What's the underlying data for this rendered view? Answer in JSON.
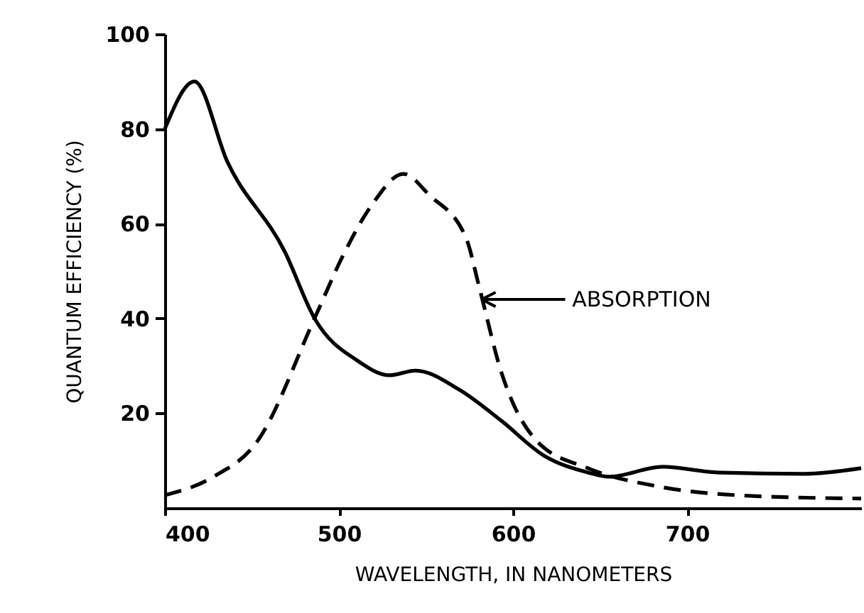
{
  "chart_data": {
    "type": "line",
    "xlabel": "WAVELENGTH, IN NANOMETERS",
    "ylabel": "QUANTUM EFFICIENCY (%)",
    "xlim": [
      400,
      800
    ],
    "xticks": [
      400,
      500,
      600,
      700
    ],
    "ylim": [
      0,
      100
    ],
    "yticks": [
      20,
      40,
      60,
      80,
      100
    ],
    "grid": false,
    "marker": "none",
    "series": [
      {
        "color": "#000000",
        "line_style": "solid",
        "x": [
          400,
          417,
          436,
          469,
          486,
          511,
          529,
          544,
          569,
          593,
          618,
          643,
          655,
          686,
          717,
          767,
          800
        ],
        "values": [
          80,
          90,
          73,
          54,
          40,
          31,
          28,
          29,
          25,
          18.5,
          11,
          7.5,
          6.6,
          8.7,
          7.5,
          7.2,
          8.4
        ]
      },
      {
        "color": "#000000",
        "line_style": "dashed",
        "x": [
          400,
          428,
          453,
          486,
          502,
          519,
          537,
          552,
          573,
          581,
          593,
          614,
          643,
          684,
          740,
          800
        ],
        "values": [
          2.7,
          6.6,
          14,
          40,
          53,
          64,
          70.5,
          66,
          57,
          46,
          29,
          14,
          8.4,
          4.5,
          2.5,
          2
        ]
      }
    ],
    "annotations": [
      "ABSORPTION"
    ]
  }
}
